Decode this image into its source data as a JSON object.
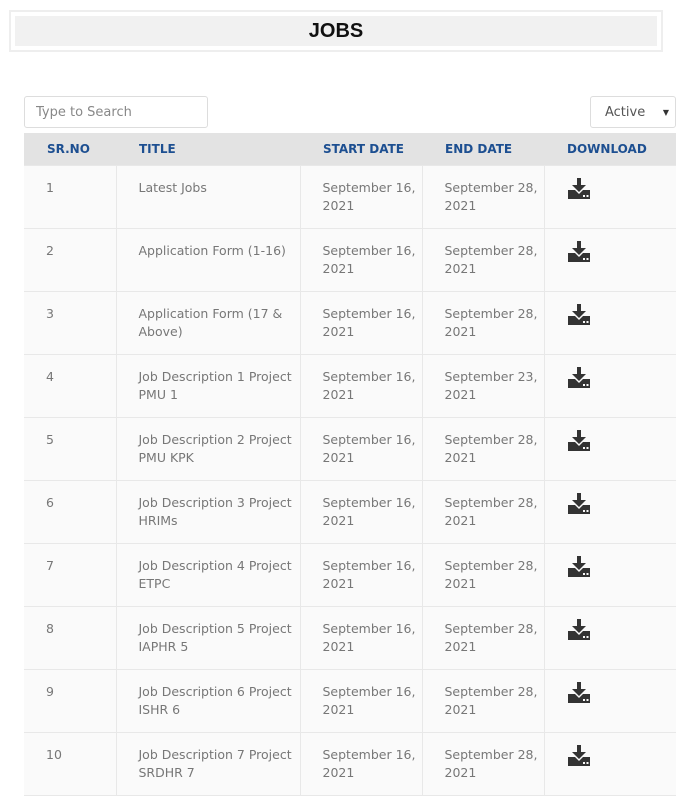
{
  "page": {
    "title": "JOBS"
  },
  "search": {
    "placeholder": "Type to Search"
  },
  "filter": {
    "selected": "Active"
  },
  "table": {
    "headers": [
      "SR.NO",
      "TITLE",
      "START DATE",
      "END DATE",
      "DOWNLOAD"
    ],
    "rows": [
      {
        "sr": "1",
        "title": "Latest Jobs",
        "start": "September 16, 2021",
        "end": "September 28, 2021",
        "icon": "download-icon"
      },
      {
        "sr": "2",
        "title": "Application Form (1-16)",
        "start": "September 16, 2021",
        "end": "September 28, 2021",
        "icon": "download-icon"
      },
      {
        "sr": "3",
        "title": "Application Form (17 & Above)",
        "start": "September 16, 2021",
        "end": "September 28, 2021",
        "icon": "download-icon"
      },
      {
        "sr": "4",
        "title": "Job Description 1 Project PMU 1",
        "start": "September 16, 2021",
        "end": "September 23, 2021",
        "icon": "download-icon"
      },
      {
        "sr": "5",
        "title": "Job Description 2 Project PMU KPK",
        "start": "September 16, 2021",
        "end": "September 28, 2021",
        "icon": "download-icon"
      },
      {
        "sr": "6",
        "title": "Job Description 3 Project HRIMs",
        "start": "September 16, 2021",
        "end": "September 28, 2021",
        "icon": "download-icon"
      },
      {
        "sr": "7",
        "title": "Job Description 4 Project ETPC",
        "start": "September 16, 2021",
        "end": "September 28, 2021",
        "icon": "download-icon"
      },
      {
        "sr": "8",
        "title": "Job Description 5 Project IAPHR 5",
        "start": "September 16, 2021",
        "end": "September 28, 2021",
        "icon": "download-icon"
      },
      {
        "sr": "9",
        "title": "Job Description 6 Project ISHR 6",
        "start": "September 16, 2021",
        "end": "September 28, 2021",
        "icon": "download-icon"
      },
      {
        "sr": "10",
        "title": "Job Description 7 Project SRDHR 7",
        "start": "September 16, 2021",
        "end": "September 28, 2021",
        "icon": "download-icon"
      }
    ]
  },
  "colors": {
    "header_text": "#1d4f91",
    "header_bg": "#e3e3e3"
  }
}
